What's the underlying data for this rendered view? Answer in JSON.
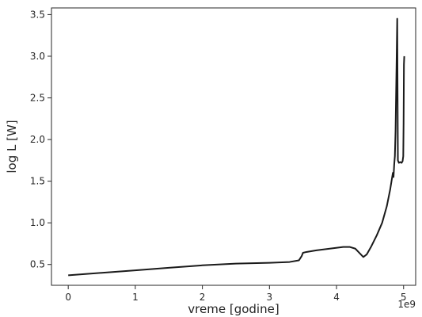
{
  "chart_data": {
    "type": "line",
    "title": "",
    "xlabel": "vreme [godine]",
    "ylabel": "log L  [W]",
    "x_offset_label": "1e9",
    "xlim": [
      -0.25,
      5.18
    ],
    "ylim": [
      0.25,
      3.58
    ],
    "xticks": [
      0,
      1,
      2,
      3,
      4,
      5
    ],
    "xtick_labels": [
      "0",
      "1",
      "2",
      "3",
      "4",
      "5"
    ],
    "yticks": [
      0.5,
      1.0,
      1.5,
      2.0,
      2.5,
      3.0,
      3.5
    ],
    "ytick_labels": [
      "0.5",
      "1.0",
      "1.5",
      "2.0",
      "2.5",
      "3.0",
      "3.5"
    ],
    "grid": false,
    "series": [
      {
        "color": "#1a1a1a",
        "x": [
          0.0,
          0.5,
          1.0,
          1.5,
          2.0,
          2.5,
          3.0,
          3.3,
          3.44,
          3.48,
          3.5,
          3.55,
          3.7,
          3.9,
          4.1,
          4.2,
          4.28,
          4.34,
          4.4,
          4.45,
          4.52,
          4.6,
          4.68,
          4.75,
          4.8,
          4.84,
          4.85,
          4.86,
          4.87,
          4.88,
          4.895,
          4.905,
          4.915,
          4.93,
          4.95,
          4.97,
          4.985,
          4.995,
          5.0,
          5.005,
          5.01
        ],
        "y": [
          0.37,
          0.4,
          0.43,
          0.46,
          0.49,
          0.51,
          0.52,
          0.53,
          0.55,
          0.6,
          0.64,
          0.65,
          0.67,
          0.69,
          0.71,
          0.71,
          0.69,
          0.64,
          0.59,
          0.62,
          0.72,
          0.85,
          1.0,
          1.2,
          1.4,
          1.6,
          1.55,
          1.7,
          1.8,
          2.1,
          2.9,
          3.45,
          1.75,
          1.72,
          1.73,
          1.72,
          1.74,
          1.8,
          2.2,
          2.9,
          3.0
        ]
      }
    ]
  }
}
